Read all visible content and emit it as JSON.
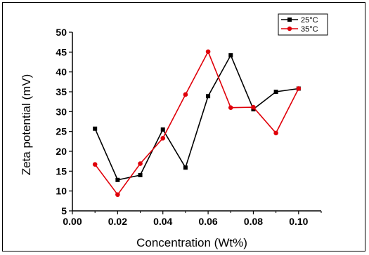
{
  "chart_data": {
    "type": "line",
    "xlabel": "Concentration (Wt%)",
    "ylabel": "Zeta potential (mV)",
    "xlim": [
      0.0,
      0.11
    ],
    "ylim": [
      5,
      50
    ],
    "x_ticks": [
      "0.00",
      "0.02",
      "0.04",
      "0.06",
      "0.08",
      "0.10"
    ],
    "y_ticks": [
      "5",
      "10",
      "15",
      "20",
      "25",
      "30",
      "35",
      "40",
      "45",
      "50"
    ],
    "x": [
      0.01,
      0.02,
      0.03,
      0.04,
      0.05,
      0.06,
      0.07,
      0.08,
      0.09,
      0.1
    ],
    "series": [
      {
        "name": "25°C",
        "color": "#000000",
        "marker": "square",
        "values": [
          25.7,
          12.8,
          14.0,
          25.5,
          15.9,
          33.9,
          44.2,
          30.6,
          35.0,
          35.8
        ]
      },
      {
        "name": "35°C",
        "color": "#e0000a",
        "marker": "circle",
        "values": [
          16.7,
          9.1,
          16.9,
          23.3,
          34.3,
          45.1,
          31.0,
          31.1,
          24.6,
          35.8
        ]
      }
    ],
    "legend_position": "top-right",
    "grid": false
  }
}
